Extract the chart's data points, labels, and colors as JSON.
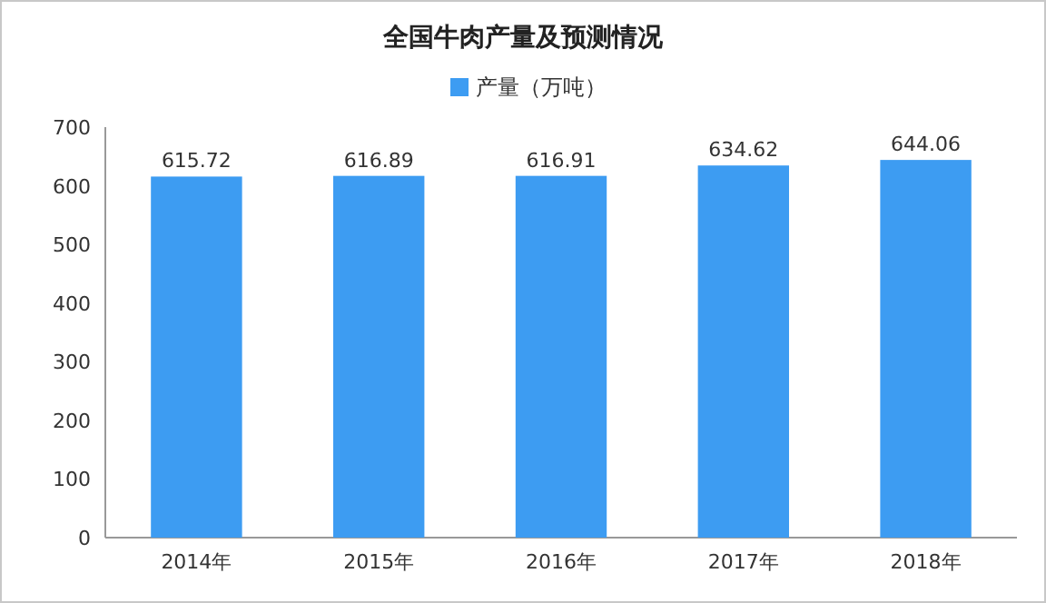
{
  "chart_data": {
    "type": "bar",
    "title": "全国牛肉产量及预测情况",
    "categories": [
      "2014年",
      "2015年",
      "2016年",
      "2017年",
      "2018年"
    ],
    "series": [
      {
        "name": "产量（万吨）",
        "color": "#3d9cf2",
        "values": [
          615.72,
          616.89,
          616.91,
          634.62,
          644.06
        ]
      }
    ],
    "ylim": [
      0,
      700
    ],
    "yticks": [
      0,
      100,
      200,
      300,
      400,
      500,
      600,
      700
    ],
    "data_labels": true,
    "legend": "top",
    "grid": false
  }
}
